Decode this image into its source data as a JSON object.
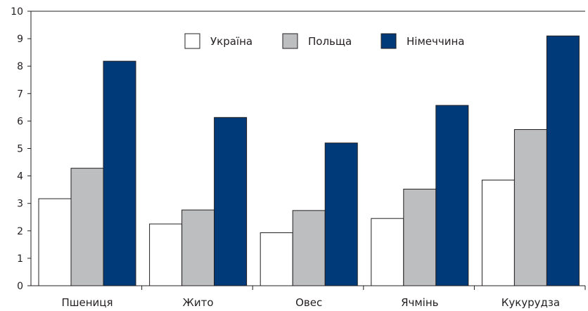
{
  "chart_data": {
    "type": "bar",
    "title": "",
    "xlabel": "",
    "ylabel": "",
    "categories": [
      "Пшениця",
      "Жито",
      "Овес",
      "Ячмінь",
      "Кукурудза"
    ],
    "series": [
      {
        "name": "Україна",
        "color": "#ffffff",
        "values": [
          3.17,
          2.25,
          1.93,
          2.45,
          3.85
        ]
      },
      {
        "name": "Польща",
        "color": "#bcbec0",
        "values": [
          4.28,
          2.76,
          2.74,
          3.52,
          5.69
        ]
      },
      {
        "name": "Німеччина",
        "color": "#003a78",
        "values": [
          8.18,
          6.13,
          5.2,
          6.57,
          9.1
        ]
      }
    ],
    "ylim": [
      0,
      10
    ],
    "yticks": [
      "0",
      "1",
      "2",
      "3",
      "4",
      "5",
      "6",
      "7",
      "8",
      "9",
      "10"
    ],
    "grid": false,
    "legend_position": "top-center",
    "stroke_color": "#231f20"
  }
}
